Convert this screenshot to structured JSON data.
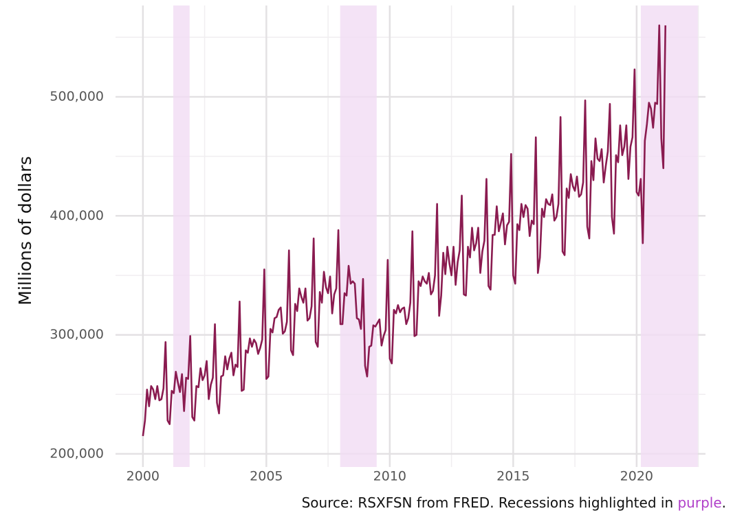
{
  "chart_data": {
    "type": "line",
    "ylabel": "Millions of dollars",
    "caption": {
      "text": "Source: RSXFSN from FRED. Recessions highlighted in ",
      "highlight": "purple",
      "end": "."
    },
    "color": "#8a1b50",
    "recession_color": "#f1dcf4",
    "xlim": [
      1998.89,
      2022.79
    ],
    "ylim": [
      189000,
      576700
    ],
    "xticks": [
      2000,
      2005,
      2010,
      2015,
      2020
    ],
    "xminorticks": [
      2002.5,
      2007.5,
      2012.5,
      2017.5,
      2022.5
    ],
    "yticks": [
      {
        "value": 200000,
        "label": "200,000"
      },
      {
        "value": 300000,
        "label": "300,000"
      },
      {
        "value": 400000,
        "label": "400,000"
      },
      {
        "value": 500000,
        "label": "500,000"
      }
    ],
    "yminorticks": [
      250000,
      350000,
      450000,
      550000
    ],
    "grid": true,
    "recessions": [
      [
        2001.23,
        2001.89
      ],
      [
        2007.99,
        2009.47
      ],
      [
        2020.17,
        2022.48
      ]
    ],
    "x": [
      2000,
      2000.083,
      2000.167,
      2000.25,
      2000.333,
      2000.417,
      2000.5,
      2000.583,
      2000.667,
      2000.75,
      2000.833,
      2000.917,
      2001,
      2001.083,
      2001.167,
      2001.25,
      2001.333,
      2001.417,
      2001.5,
      2001.583,
      2001.667,
      2001.75,
      2001.833,
      2001.917,
      2002,
      2002.083,
      2002.167,
      2002.25,
      2002.333,
      2002.417,
      2002.5,
      2002.583,
      2002.667,
      2002.75,
      2002.833,
      2002.917,
      2003,
      2003.083,
      2003.167,
      2003.25,
      2003.333,
      2003.417,
      2003.5,
      2003.583,
      2003.667,
      2003.75,
      2003.833,
      2003.917,
      2004,
      2004.083,
      2004.167,
      2004.25,
      2004.333,
      2004.417,
      2004.5,
      2004.583,
      2004.667,
      2004.75,
      2004.833,
      2004.917,
      2005,
      2005.083,
      2005.167,
      2005.25,
      2005.333,
      2005.417,
      2005.5,
      2005.583,
      2005.667,
      2005.75,
      2005.833,
      2005.917,
      2006,
      2006.083,
      2006.167,
      2006.25,
      2006.333,
      2006.417,
      2006.5,
      2006.583,
      2006.667,
      2006.75,
      2006.833,
      2006.917,
      2007,
      2007.083,
      2007.167,
      2007.25,
      2007.333,
      2007.417,
      2007.5,
      2007.583,
      2007.667,
      2007.75,
      2007.833,
      2007.917,
      2008,
      2008.083,
      2008.167,
      2008.25,
      2008.333,
      2008.417,
      2008.5,
      2008.583,
      2008.667,
      2008.75,
      2008.833,
      2008.917,
      2009,
      2009.083,
      2009.167,
      2009.25,
      2009.333,
      2009.417,
      2009.5,
      2009.583,
      2009.667,
      2009.75,
      2009.833,
      2009.917,
      2010,
      2010.083,
      2010.167,
      2010.25,
      2010.333,
      2010.417,
      2010.5,
      2010.583,
      2010.667,
      2010.75,
      2010.833,
      2010.917,
      2011,
      2011.083,
      2011.167,
      2011.25,
      2011.333,
      2011.417,
      2011.5,
      2011.583,
      2011.667,
      2011.75,
      2011.833,
      2011.917,
      2012,
      2012.083,
      2012.167,
      2012.25,
      2012.333,
      2012.417,
      2012.5,
      2012.583,
      2012.667,
      2012.75,
      2012.833,
      2012.917,
      2013,
      2013.083,
      2013.167,
      2013.25,
      2013.333,
      2013.417,
      2013.5,
      2013.583,
      2013.667,
      2013.75,
      2013.833,
      2013.917,
      2014,
      2014.083,
      2014.167,
      2014.25,
      2014.333,
      2014.417,
      2014.5,
      2014.583,
      2014.667,
      2014.75,
      2014.833,
      2014.917,
      2015,
      2015.083,
      2015.167,
      2015.25,
      2015.333,
      2015.417,
      2015.5,
      2015.583,
      2015.667,
      2015.75,
      2015.833,
      2015.917,
      2016,
      2016.083,
      2016.167,
      2016.25,
      2016.333,
      2016.417,
      2016.5,
      2016.583,
      2016.667,
      2016.75,
      2016.833,
      2016.917,
      2017,
      2017.083,
      2017.167,
      2017.25,
      2017.333,
      2017.417,
      2017.5,
      2017.583,
      2017.667,
      2017.75,
      2017.833,
      2017.917,
      2018,
      2018.083,
      2018.167,
      2018.25,
      2018.333,
      2018.417,
      2018.5,
      2018.583,
      2018.667,
      2018.75,
      2018.833,
      2018.917,
      2019,
      2019.083,
      2019.167,
      2019.25,
      2019.333,
      2019.417,
      2019.5,
      2019.583,
      2019.667,
      2019.75,
      2019.833,
      2019.917,
      2020,
      2020.083,
      2020.167,
      2020.25,
      2020.333,
      2020.417,
      2020.5,
      2020.583,
      2020.667,
      2020.75,
      2020.833,
      2020.917,
      2021,
      2021.083,
      2021.167
    ],
    "values": [
      215000,
      228000,
      254000,
      240000,
      257000,
      254000,
      246000,
      257000,
      245000,
      246000,
      255000,
      294000,
      228000,
      225000,
      253000,
      251000,
      269000,
      260000,
      252000,
      267000,
      236000,
      264000,
      263000,
      299000,
      231000,
      228000,
      257000,
      256000,
      272000,
      262000,
      266000,
      278000,
      246000,
      258000,
      264000,
      309000,
      243000,
      234000,
      265000,
      266000,
      282000,
      271000,
      280000,
      285000,
      266000,
      275000,
      273000,
      328000,
      253000,
      254000,
      287000,
      285000,
      297000,
      290000,
      296000,
      293000,
      284000,
      289000,
      296000,
      355000,
      263000,
      265000,
      305000,
      302000,
      314000,
      315000,
      321000,
      323000,
      301000,
      303000,
      311000,
      371000,
      287000,
      283000,
      326000,
      320000,
      339000,
      332000,
      327000,
      339000,
      312000,
      314000,
      324000,
      381000,
      294000,
      290000,
      336000,
      327000,
      353000,
      340000,
      335000,
      349000,
      318000,
      334000,
      339000,
      388000,
      309000,
      309000,
      335000,
      333000,
      358000,
      343000,
      345000,
      343000,
      314000,
      313000,
      305000,
      347000,
      274000,
      265000,
      290000,
      291000,
      308000,
      307000,
      310000,
      313000,
      291000,
      299000,
      304000,
      363000,
      280000,
      276000,
      321000,
      318000,
      325000,
      319000,
      322000,
      323000,
      309000,
      314000,
      327000,
      387000,
      299000,
      300000,
      345000,
      341000,
      349000,
      345000,
      343000,
      352000,
      334000,
      337000,
      350000,
      410000,
      316000,
      333000,
      369000,
      351000,
      374000,
      360000,
      350000,
      374000,
      342000,
      361000,
      371000,
      417000,
      334000,
      333000,
      374000,
      365000,
      390000,
      371000,
      377000,
      390000,
      352000,
      370000,
      379000,
      431000,
      341000,
      338000,
      384000,
      384000,
      408000,
      387000,
      394000,
      402000,
      376000,
      392000,
      395000,
      452000,
      350000,
      343000,
      393000,
      388000,
      410000,
      399000,
      409000,
      406000,
      383000,
      396000,
      393000,
      466000,
      352000,
      365000,
      406000,
      399000,
      414000,
      410000,
      409000,
      418000,
      396000,
      399000,
      410000,
      483000,
      370000,
      367000,
      423000,
      415000,
      435000,
      425000,
      421000,
      433000,
      416000,
      418000,
      428000,
      497000,
      391000,
      381000,
      446000,
      430000,
      465000,
      448000,
      446000,
      456000,
      428000,
      442000,
      454000,
      494000,
      399000,
      385000,
      451000,
      445000,
      476000,
      451000,
      458000,
      476000,
      431000,
      458000,
      466000,
      523000,
      420000,
      417000,
      431000,
      377000,
      463000,
      477000,
      495000,
      490000,
      474000,
      495000,
      494000,
      560000,
      465000,
      440000,
      560000
    ]
  }
}
